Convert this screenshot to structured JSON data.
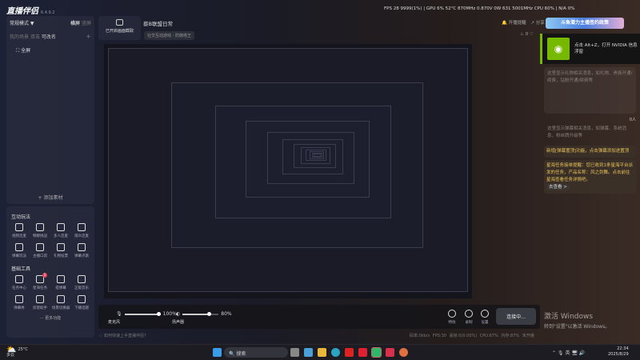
{
  "app": {
    "name": "直播伴侣",
    "version": "6.4.9.2"
  },
  "stats_bar": "FPS  28   9999(1%)  |  GPU  6%  52°C  870MHz  0.870V  0W  631  5001MHz  CPU 60%  |  N/A  0%",
  "scene_panel": {
    "mode": "常规模式 ▼",
    "landscape": "横屏",
    "portrait": "竖屏",
    "my_scenes": "我的场景",
    "double_click": "双击",
    "rename": "可改名",
    "add": "+",
    "scene_item": "全屏",
    "add_source": "+ 添加素材"
  },
  "interactive": {
    "title": "互动玩法",
    "items": [
      "视频连麦",
      "畅聊挑战",
      "多人连麦",
      "观众连麦",
      "弹幕玩法",
      "主播口袋",
      "礼物投票",
      "弹幕点歌"
    ]
  },
  "basic_tools": {
    "title": "基础工具",
    "items": [
      "任务中心",
      "星海任务",
      "提弹幕",
      "正版音乐",
      "弹幕秀",
      "房管助手",
      "场景切换器",
      "下播话题"
    ],
    "badge": "1",
    "more": "··· 更多功能"
  },
  "capture": {
    "label": "已开启画面截取"
  },
  "stream": {
    "title": "蔡B联盟日常",
    "category": "社交互动游戏 - 防御塔王"
  },
  "top_actions": {
    "notify": "开播提醒",
    "share": "分享",
    "banner": "斗鱼潜力主播签约政策",
    "likes": "0"
  },
  "nvidia": {
    "text": "点击 Alt+Z，打开 NVIDIA 信息浮窗"
  },
  "right_panel": {
    "info1": "这里显示礼物相关消息，如礼物、贵族开通/续费，钻粉开通/续费等",
    "count": "0人",
    "info2": "这里显示弹幕相关消息，如弹幕、系统消息，粉丝牌升级等",
    "notice1": "新增[弹幕置顶]功能，点击弹幕添加进置顶",
    "notice2": "星海任务接单提醒：您已收到1条星海平台派发的任务，产品名称：风之剑舞。点击前往星海查看任务详情吧。",
    "goto": "去查看 >"
  },
  "audio": {
    "mic_label": "麦克风",
    "mic_level": "100%",
    "speaker_label": "扬声器",
    "speaker_level": "80%"
  },
  "controls": {
    "effects": "特效",
    "record": "录制",
    "settings": "设置",
    "connect": "连接中..."
  },
  "activation": {
    "title": "激活 Windows",
    "sub": "转到\"设置\"以激活 Windows。"
  },
  "status": {
    "help": "如何快速上手直播伴侣?",
    "bitrate": "码率:0kb/s",
    "fps": "FPS:30",
    "dropped": "丢帧:0(0.00%)",
    "cpu": "CPU:67%",
    "mem": "内存:87%",
    "live": "未开播"
  },
  "taskbar": {
    "temp": "25°C",
    "weather": "多云",
    "search": "搜索",
    "lang": "英",
    "time": "22:34",
    "date": "2025/8/29"
  }
}
